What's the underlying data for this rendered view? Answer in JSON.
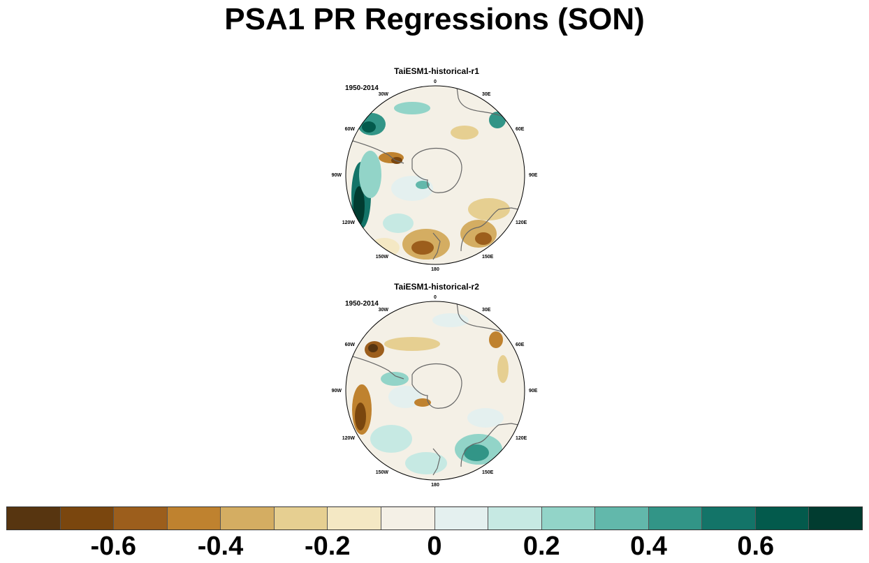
{
  "figure": {
    "title": "PSA1 PR Regressions (SON)"
  },
  "panels": [
    {
      "title": "TaiESM1-historical-r1",
      "period": "1950-2014",
      "lon_labels": [
        "0",
        "30E",
        "60E",
        "90E",
        "120E",
        "150E",
        "180",
        "150W",
        "120W",
        "90W",
        "60W",
        "30W"
      ]
    },
    {
      "title": "TaiESM1-historical-r2",
      "period": "1950-2014",
      "lon_labels": [
        "0",
        "30E",
        "60E",
        "90E",
        "120E",
        "150E",
        "180",
        "150W",
        "120W",
        "90W",
        "60W",
        "30W"
      ]
    }
  ],
  "colorbar": {
    "colors": [
      "#573510",
      "#7a460e",
      "#9c5e1c",
      "#bf822f",
      "#d4ad62",
      "#e6cf91",
      "#f4e8c4",
      "#f4f0e6",
      "#e4f0ef",
      "#c6e9e3",
      "#92d4c8",
      "#62b8ab",
      "#329587",
      "#137468",
      "#035a4c",
      "#013c30"
    ],
    "tick_labels": [
      "-0.6",
      "-0.4",
      "-0.2",
      "0",
      "0.2",
      "0.4",
      "0.6"
    ]
  }
}
